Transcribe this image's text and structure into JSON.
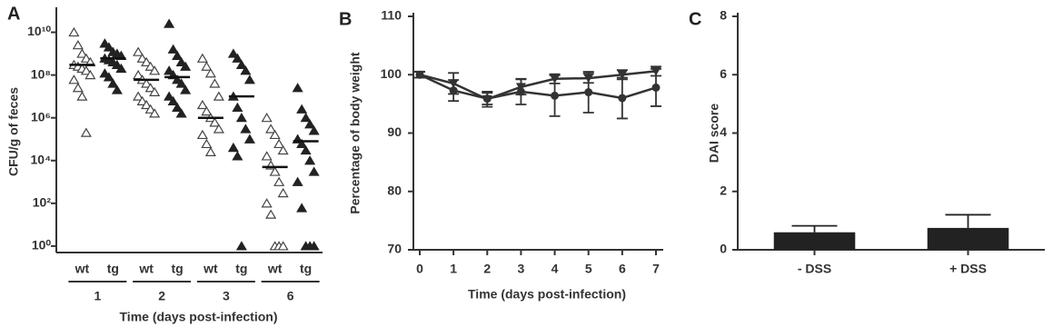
{
  "chart_data": [
    {
      "type": "strip",
      "panel_label": "A",
      "y_label": "CFU/g of feces",
      "x_label": "Time (days post-infection)",
      "log_scale": true,
      "ylim": [
        0.5,
        100000000000
      ],
      "yticks": [
        {
          "value": 1,
          "label": "10⁰"
        },
        {
          "value": 100,
          "label": "10²"
        },
        {
          "value": 10000,
          "label": "10⁴"
        },
        {
          "value": 1000000,
          "label": "10⁶"
        },
        {
          "value": 100000000,
          "label": "10⁸"
        },
        {
          "value": 10000000000,
          "label": "10¹⁰"
        }
      ],
      "categories": [
        "1",
        "2",
        "3",
        "6"
      ],
      "series": [
        {
          "name": "wt",
          "color": "#444",
          "filled": false,
          "values": [
            [
              10000000000.0,
              2500000000.0,
              1000000000.0,
              600000000.0,
              400000000.0,
              300000000.0,
              250000000.0,
              200000000.0,
              160000000.0,
              100000000.0,
              60000000.0,
              25000000.0,
              10000000.0,
              200000.0
            ],
            [
              1200000000.0,
              600000000.0,
              400000000.0,
              250000000.0,
              160000000.0,
              100000000.0,
              60000000.0,
              40000000.0,
              25000000.0,
              16000000.0,
              10000000.0,
              6000000.0,
              4000000.0,
              2500000.0,
              1600000.0
            ],
            [
              600000000.0,
              250000000.0,
              120000000.0,
              40000000.0,
              10000000.0,
              4000000.0,
              2000000.0,
              1000000.0,
              600000.0,
              300000.0,
              160000.0,
              60000.0,
              25000.0
            ],
            [
              1000000.0,
              300000.0,
              160000.0,
              60000.0,
              30000.0,
              16000.0,
              6000.0,
              3000.0,
              1000.0,
              300.0,
              100.0,
              30.0,
              1,
              1,
              1
            ]
          ],
          "medians": [
            300000000.0,
            60000000.0,
            1000000.0,
            5000.0
          ]
        },
        {
          "name": "tg",
          "color": "#222",
          "filled": true,
          "values": [
            [
              3000000000.0,
              2000000000.0,
              1200000000.0,
              1000000000.0,
              800000000.0,
              600000000.0,
              500000000.0,
              400000000.0,
              300000000.0,
              200000000.0,
              120000000.0,
              80000000.0,
              40000000.0,
              20000000.0
            ],
            [
              25000000000.0,
              1600000000.0,
              800000000.0,
              400000000.0,
              250000000.0,
              160000000.0,
              100000000.0,
              60000000.0,
              40000000.0,
              20000000.0,
              10000000.0,
              6000000.0,
              3000000.0,
              1600000.0
            ],
            [
              1000000000.0,
              600000000.0,
              300000000.0,
              160000000.0,
              60000000.0,
              10000000.0,
              3000000.0,
              1000000.0,
              300000.0,
              100000.0,
              40000.0,
              16000.0,
              1
            ],
            [
              25000000.0,
              2500000.0,
              1000000.0,
              500000.0,
              250000.0,
              100000.0,
              60000.0,
              30000.0,
              10000.0,
              3000.0,
              1000.0,
              60.0,
              1,
              1,
              1
            ]
          ],
          "medians": [
            600000000.0,
            80000000.0,
            10000000.0,
            80000.0
          ]
        }
      ]
    },
    {
      "type": "line",
      "panel_label": "B",
      "y_label": "Percentage of body weight",
      "x_label": "Time (days post-infection)",
      "x": [
        0,
        1,
        2,
        3,
        4,
        5,
        6,
        7
      ],
      "xlim": [
        0,
        7
      ],
      "xticks": [
        0,
        1,
        2,
        3,
        4,
        5,
        6,
        7
      ],
      "ylim": [
        70,
        110
      ],
      "yticks": [
        70,
        80,
        90,
        100,
        110
      ],
      "series": [
        {
          "color": "#333",
          "marker": "triangle",
          "values": [
            100,
            98.5,
            95.8,
            97.9,
            99.3,
            99.4,
            100,
            100.6
          ],
          "errors": [
            0.5,
            1.8,
            1.3,
            1.3,
            0.8,
            0.8,
            0.8,
            0.8
          ]
        },
        {
          "color": "#333",
          "marker": "circle",
          "values": [
            100,
            97.3,
            95.9,
            97.1,
            96.4,
            97,
            96,
            97.8
          ],
          "errors": [
            0.5,
            1.8,
            1,
            2.2,
            3.5,
            3.5,
            3.5,
            3.2
          ]
        }
      ]
    },
    {
      "type": "bar",
      "panel_label": "C",
      "y_label": "DAI score",
      "categories": [
        "- DSS",
        "+ DSS"
      ],
      "values": [
        0.6,
        0.75
      ],
      "errors": [
        0.22,
        0.45
      ],
      "color": "#222",
      "ylim": [
        0,
        8
      ],
      "yticks": [
        0,
        2,
        4,
        6,
        8
      ]
    }
  ]
}
